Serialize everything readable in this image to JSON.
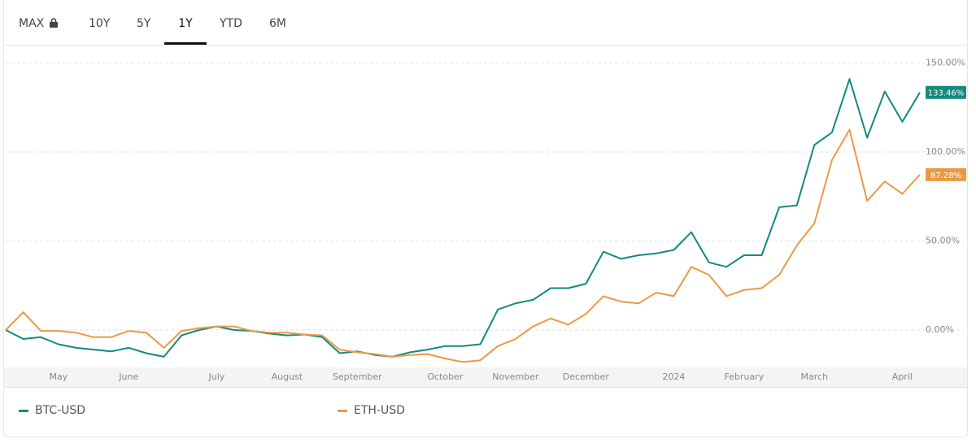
{
  "tabs": [
    "MAX",
    "10Y",
    "5Y",
    "1Y",
    "YTD",
    "6M"
  ],
  "selected_tab": 3,
  "locked_tab": 0,
  "chart_data": {
    "type": "line",
    "categories": [
      null,
      null,
      null,
      "May",
      null,
      null,
      null,
      "June",
      null,
      null,
      null,
      null,
      "July",
      null,
      null,
      null,
      "August",
      null,
      null,
      null,
      "September",
      null,
      null,
      null,
      null,
      "October",
      null,
      null,
      null,
      "November",
      null,
      null,
      null,
      "December",
      null,
      null,
      null,
      null,
      "2024",
      null,
      null,
      null,
      "February",
      null,
      null,
      null,
      "March",
      null,
      null,
      null,
      null,
      "April",
      null
    ],
    "series": [
      {
        "name": "BTC-USD",
        "color": "#138a7c",
        "values": [
          0,
          -5,
          -4,
          -8,
          -10,
          -11,
          -12,
          -10,
          -13,
          -15,
          -3,
          0,
          2,
          0,
          -0.5,
          -2,
          -3,
          -2.5,
          -4,
          -13,
          -12,
          -14,
          -15,
          -12.5,
          -11,
          -9,
          -9,
          -8,
          11.5,
          15,
          17,
          23.5,
          23.5,
          26,
          44,
          40,
          42,
          43,
          45,
          55,
          38,
          35.5,
          42,
          42,
          69,
          70,
          104,
          111,
          141,
          108,
          134,
          117,
          133.46
        ],
        "value_labels": [
          null,
          null,
          null,
          null,
          null,
          null,
          null,
          null,
          null,
          null,
          null,
          null,
          null,
          null,
          null,
          null,
          null,
          null,
          null,
          null,
          null,
          null,
          null,
          null,
          null,
          null,
          null,
          null,
          null,
          null,
          null,
          null,
          null,
          null,
          null,
          null,
          null,
          null,
          null,
          null,
          null,
          null,
          null,
          null,
          null,
          null,
          null,
          null,
          null,
          null,
          null,
          null,
          "133.46%"
        ]
      },
      {
        "name": "ETH-USD",
        "color": "#ea9a45",
        "values": [
          0,
          10,
          -0.5,
          -0.5,
          -1.5,
          -4,
          -4,
          -0.5,
          -1.5,
          -10,
          -0.5,
          1,
          2,
          2,
          -0.5,
          -1.5,
          -1.5,
          -2.5,
          -3,
          -11,
          -12.5,
          -13.5,
          -15,
          -14,
          -13.5,
          -16,
          -18,
          -17,
          -9,
          -5,
          2,
          6.5,
          3,
          9,
          19,
          16,
          15,
          21,
          19,
          35.5,
          31,
          19,
          22.5,
          23.5,
          31,
          47.5,
          60,
          95.5,
          112.5,
          72.5,
          83.5,
          76.5,
          87.28
        ],
        "value_labels": [
          null,
          null,
          null,
          null,
          null,
          null,
          null,
          null,
          null,
          null,
          null,
          null,
          null,
          null,
          null,
          null,
          null,
          null,
          null,
          null,
          null,
          null,
          null,
          null,
          null,
          null,
          null,
          null,
          null,
          null,
          null,
          null,
          null,
          null,
          null,
          null,
          null,
          null,
          null,
          null,
          null,
          null,
          null,
          null,
          null,
          null,
          null,
          null,
          null,
          null,
          null,
          null,
          "87.28%"
        ]
      }
    ],
    "ylim": [
      -21,
      158
    ],
    "yticks": [
      {
        "value": 0,
        "label": "0.00%"
      },
      {
        "value": 50,
        "label": "50.00%"
      },
      {
        "value": 100,
        "label": "100.00%"
      },
      {
        "value": 150,
        "label": "150.00%"
      }
    ],
    "grid": true
  }
}
